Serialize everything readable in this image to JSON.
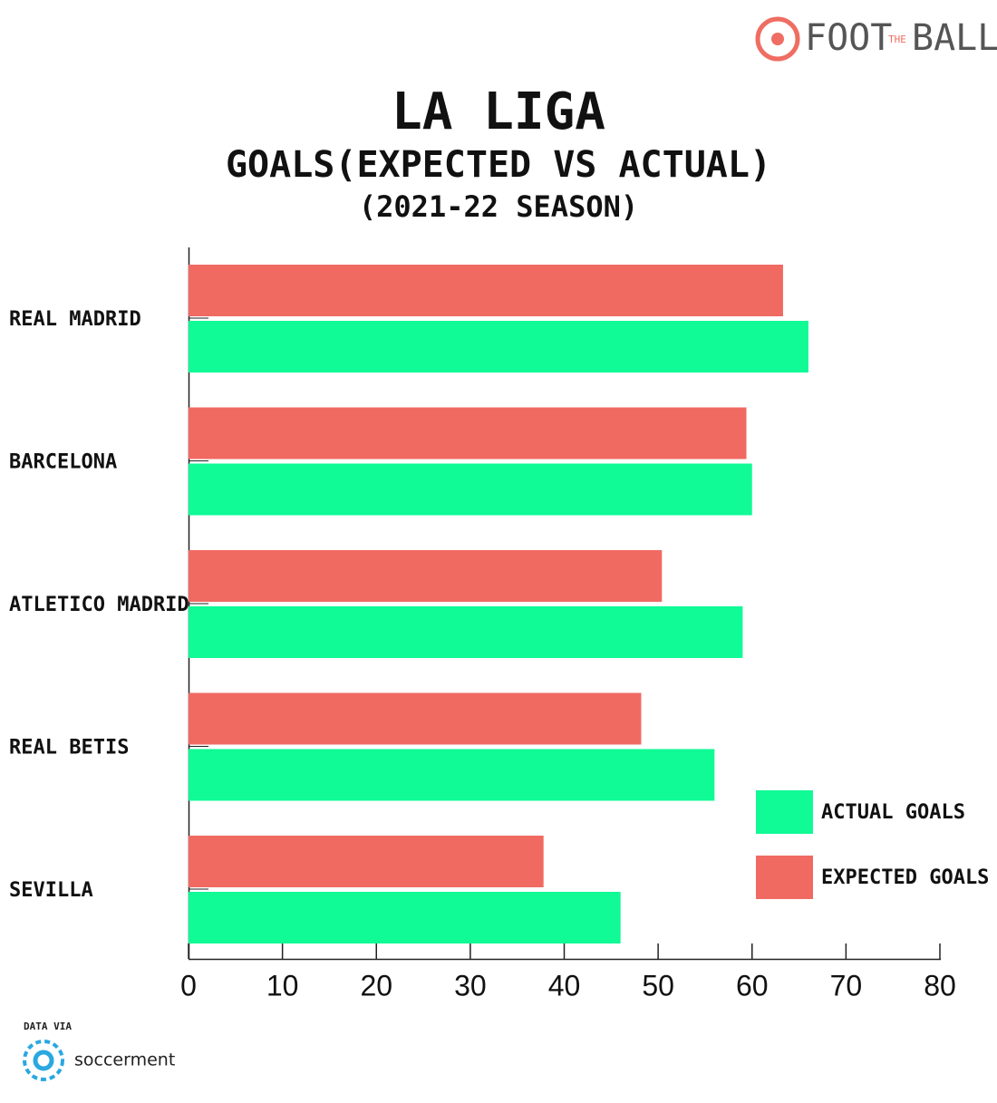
{
  "brand": {
    "foot": "FOOT",
    "the": "THE",
    "ball": "BALL"
  },
  "chart_data": {
    "type": "bar",
    "orientation": "horizontal",
    "title": "LA LIGA",
    "subtitle": "GOALS(EXPECTED VS ACTUAL)",
    "season": "(2021-22 SEASON)",
    "categories": [
      "REAL MADRID",
      "BARCELONA",
      "ATLETICO MADRID",
      "REAL BETIS",
      "SEVILLA"
    ],
    "series": [
      {
        "name": "ACTUAL GOALS",
        "color": "#10fa96",
        "values": [
          66,
          60,
          59,
          56,
          46
        ]
      },
      {
        "name": "EXPECTED GOALS",
        "color": "#f06a62",
        "values": [
          63.3,
          59.4,
          50.4,
          48.2,
          37.8
        ]
      }
    ],
    "xlim": [
      0,
      80
    ],
    "xticks": [
      0,
      10,
      20,
      30,
      40,
      50,
      60,
      70,
      80
    ],
    "grid": false,
    "legend": "lower right"
  },
  "source": {
    "label": "DATA VIA",
    "name": "soccerment"
  }
}
